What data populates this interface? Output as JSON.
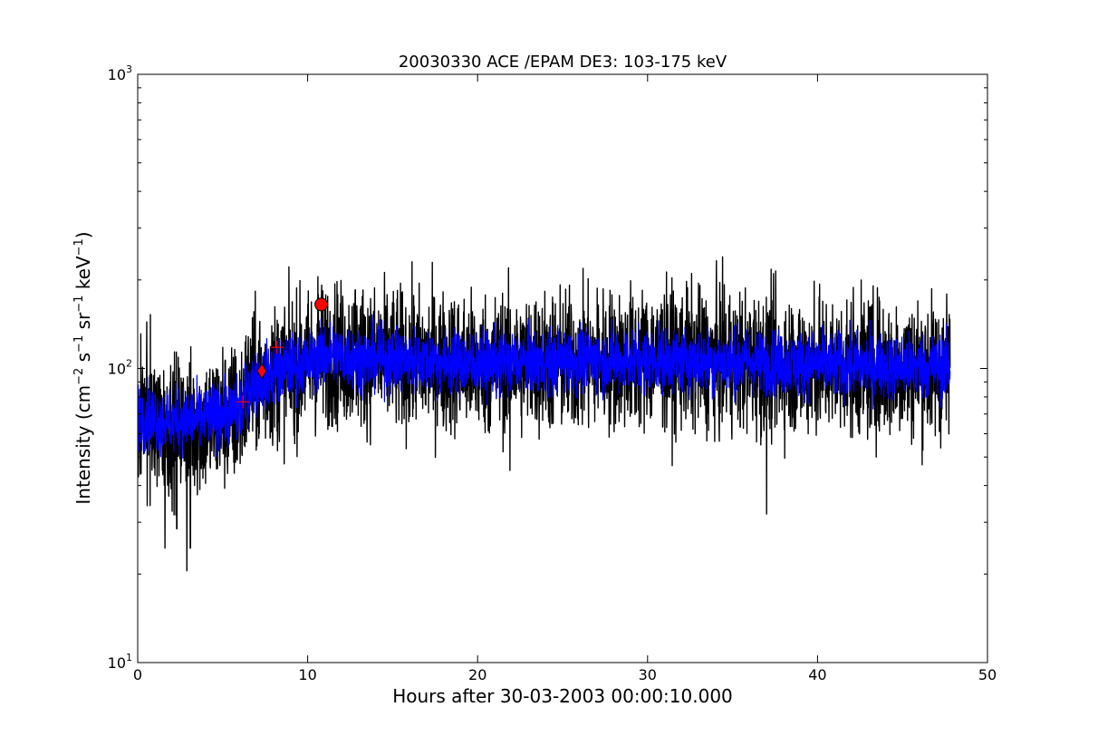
{
  "chart_data": {
    "type": "line",
    "title": "20030330 ACE /EPAM DE3: 103-175 keV",
    "xlabel": "Hours after 30-03-2003 00:00:10.000",
    "ylabel": "Intensity (cm⁻² s⁻¹ sr⁻¹ keV⁻¹)",
    "xlim": [
      0,
      50
    ],
    "ylim": [
      10,
      1000
    ],
    "yscale": "log",
    "grid": false,
    "x_ticks": [
      "0",
      "10",
      "20",
      "30",
      "40",
      "50"
    ],
    "y_ticks": [
      {
        "base": "10",
        "exp": "1"
      },
      {
        "base": "10",
        "exp": "2"
      },
      {
        "base": "10",
        "exp": "3"
      }
    ],
    "series": [
      {
        "color": "#000000",
        "kind": "raw",
        "x_range": [
          0,
          47.8
        ],
        "profile": [
          [
            0,
            68
          ],
          [
            2,
            63
          ],
          [
            4,
            65
          ],
          [
            6,
            70
          ],
          [
            6.6,
            88
          ],
          [
            8,
            95
          ],
          [
            10,
            104
          ],
          [
            11,
            113
          ],
          [
            14,
            108
          ],
          [
            20,
            103
          ],
          [
            30,
            108
          ],
          [
            40,
            102
          ],
          [
            47.8,
            100
          ]
        ],
        "spread_factor": 1.55,
        "extremes": [
          [
            2.9,
            20.5
          ],
          [
            3.1,
            24.5
          ],
          [
            1.6,
            24.5
          ],
          [
            2.3,
            28.5
          ],
          [
            10.6,
            205
          ],
          [
            21.9,
            45
          ],
          [
            37.0,
            32
          ],
          [
            39.8,
            198
          ],
          [
            12.8,
            185
          ],
          [
            5.0,
            118
          ]
        ]
      },
      {
        "color": "#0000ff",
        "kind": "smoothed",
        "x_range": [
          0,
          47.8
        ],
        "profile": [
          [
            0,
            70
          ],
          [
            2,
            66
          ],
          [
            4,
            68
          ],
          [
            6,
            72
          ],
          [
            6.6,
            88
          ],
          [
            8,
            97
          ],
          [
            10,
            105
          ],
          [
            11,
            112
          ],
          [
            14,
            108
          ],
          [
            20,
            104
          ],
          [
            30,
            108
          ],
          [
            40,
            103
          ],
          [
            47.8,
            101
          ]
        ],
        "spread_factor": 1.22
      }
    ],
    "markers": [
      {
        "shape": "circle",
        "x": 10.8,
        "y": 165,
        "color": "#ff0000"
      },
      {
        "shape": "diamond",
        "x": 7.3,
        "y": 98,
        "color": "#ff0000"
      },
      {
        "shape": "plus",
        "x": 6.2,
        "y": 77,
        "color": "#ff0000"
      },
      {
        "shape": "plus",
        "x": 8.2,
        "y": 118,
        "color": "#ff0000"
      }
    ]
  }
}
